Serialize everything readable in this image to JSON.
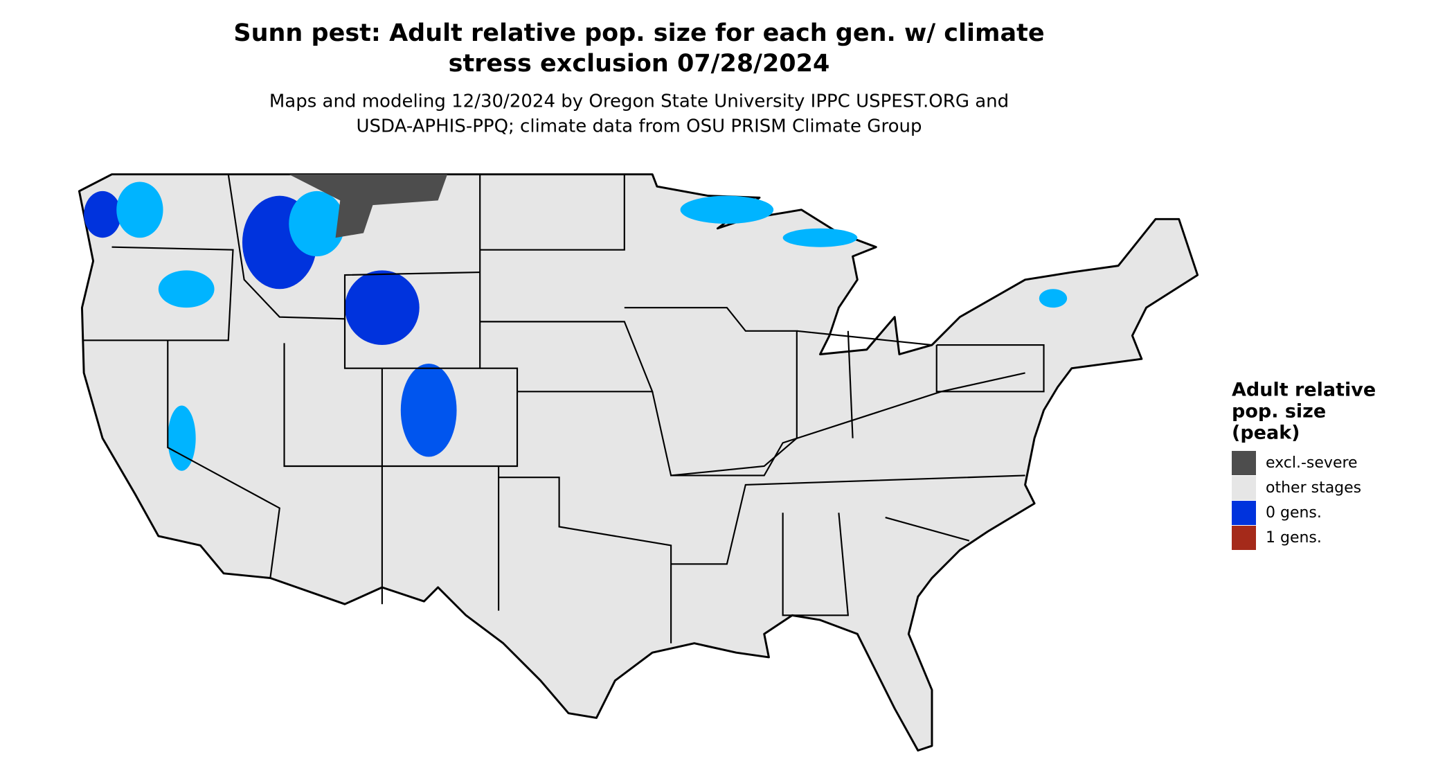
{
  "title": [
    "Sunn pest: Adult relative pop. size for each gen. w/ climate",
    "stress exclusion 07/28/2024"
  ],
  "subtitle": [
    "Maps and modeling 12/30/2024 by Oregon State University IPPC USPEST.ORG and",
    "USDA-APHIS-PPQ; climate data from OSU PRISM Climate Group"
  ],
  "legend": {
    "title": [
      "Adult relative",
      "pop. size",
      "(peak)"
    ],
    "items": [
      {
        "label": "excl.-severe",
        "color": "#4d4d4d"
      },
      {
        "label": "other stages",
        "color": "#e6e6e6"
      },
      {
        "label": "0 gens.",
        "color": "#0033dd"
      },
      {
        "label": "1 gens.",
        "color": "#a52a1a"
      }
    ]
  }
}
